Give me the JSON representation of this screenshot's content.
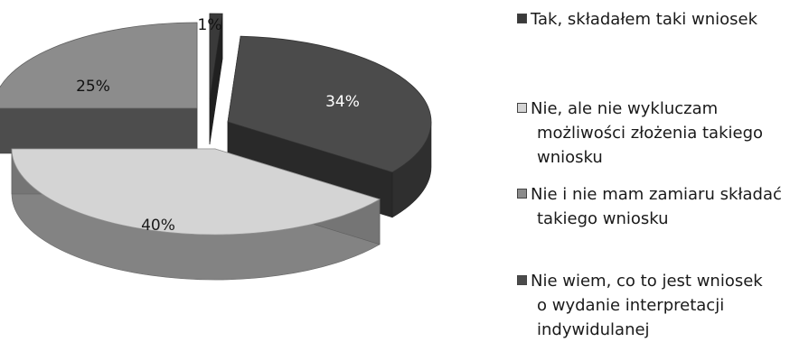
{
  "chart_data": {
    "type": "pie",
    "style": "3d-exploded",
    "legend_position": "right",
    "slices": [
      {
        "name": "Tak, składałem taki wniosek",
        "value": 1,
        "label": "1%",
        "color": "#3a3a3a",
        "legend_lines": [
          "Tak, składałem taki wniosek"
        ]
      },
      {
        "name": "Nie wiem, co to jest wniosek o wydanie interpretacji indywidulanej",
        "value": 34,
        "label": "34%",
        "color": "#4b4b4b",
        "legend_lines": [
          "Nie wiem, co to jest wniosek",
          "o wydanie interpretacji",
          "indywidulanej"
        ]
      },
      {
        "name": "Nie, ale nie wykluczam możliwości złożenia takiego wniosku",
        "value": 40,
        "label": "40%",
        "color": "#d4d4d4",
        "legend_lines": [
          "Nie, ale nie wykluczam",
          "możliwości złożenia takiego",
          "wniosku"
        ]
      },
      {
        "name": "Nie i nie mam zamiaru składać takiego wniosku",
        "value": 25,
        "label": "25%",
        "color": "#8c8c8c",
        "legend_lines": [
          "Nie i nie mam zamiaru składać",
          "takiego wniosku"
        ]
      }
    ],
    "legend_order": [
      0,
      2,
      3,
      1
    ]
  }
}
